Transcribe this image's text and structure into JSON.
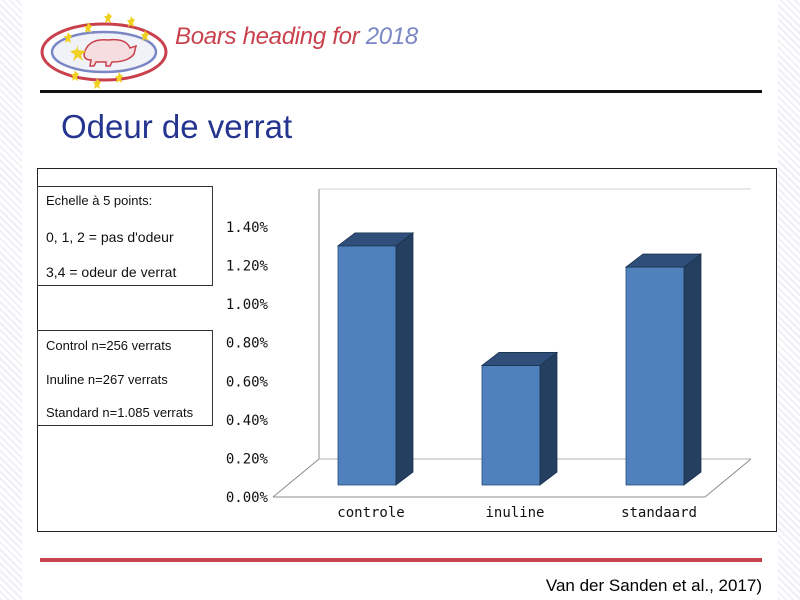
{
  "header": {
    "logo_text": "Boars heading for ",
    "logo_year": "2018"
  },
  "title": "Odeur de verrat",
  "scale_legend": {
    "heading": "Echelle à 5 points:",
    "line1": "0, 1, 2 = pas d'odeur",
    "line2": "3,4 = odeur de verrat"
  },
  "group_legend": {
    "line1": "Control n=256 verrats",
    "line2": "Inuline n=267 verrats",
    "line3": "Standard n=1.085 verrats"
  },
  "citation": "Van der Sanden et al., 2017)",
  "colors": {
    "bar_front": "#4f81bd",
    "bar_side": "#243f60",
    "bar_top": "#2f4f7a",
    "title": "#24348f",
    "logo": "#c9414c",
    "accent_rule": "#c9414c"
  },
  "chart_data": {
    "type": "bar",
    "style": "3d-column",
    "categories": [
      "controle",
      "inuline",
      "standaard"
    ],
    "values": [
      1.24,
      0.62,
      1.13
    ],
    "unit": "%",
    "ylim": [
      0,
      1.4
    ],
    "yticks": [
      "0.00%",
      "0.20%",
      "0.40%",
      "0.60%",
      "0.80%",
      "1.00%",
      "1.20%",
      "1.40%"
    ],
    "xlabel": "",
    "ylabel": "",
    "grid": false,
    "legend": "none"
  }
}
